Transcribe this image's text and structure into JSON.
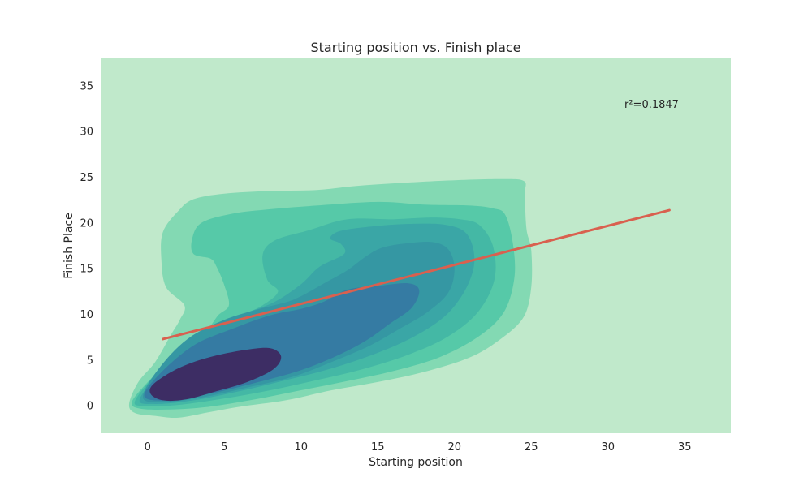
{
  "chart_data": {
    "type": "kde_contour",
    "title": "Starting position vs. Finish place",
    "xlabel": "Starting position",
    "ylabel": "Finish Place",
    "xlim": [
      -3,
      38
    ],
    "ylim": [
      -3,
      38
    ],
    "xticks": [
      0,
      5,
      10,
      15,
      20,
      25,
      30,
      35
    ],
    "yticks": [
      0,
      5,
      10,
      15,
      20,
      25,
      30,
      35
    ],
    "x_tick_labels": [
      "0",
      "5",
      "10",
      "15",
      "20",
      "25",
      "30",
      "35"
    ],
    "y_tick_labels": [
      "0",
      "5",
      "10",
      "15",
      "20",
      "25",
      "30",
      "35"
    ],
    "grid": false,
    "background_color": "#c0e9cb",
    "regression_line": {
      "x": [
        1,
        34
      ],
      "y": [
        7.3,
        21.4
      ],
      "color": "#d9604f"
    },
    "annotation": {
      "text": "r²=0.1847",
      "x": 31,
      "y": 33
    },
    "density_levels": [
      {
        "level": 1,
        "color": "#83d9b3",
        "outline": [
          [
            -1.2,
            0.2
          ],
          [
            -0.8,
            -0.8
          ],
          [
            0.5,
            -1.1
          ],
          [
            2,
            -1.3
          ],
          [
            4,
            -0.7
          ],
          [
            6,
            -0.1
          ],
          [
            9,
            0.6
          ],
          [
            12,
            1.7
          ],
          [
            15,
            2.6
          ],
          [
            18,
            3.7
          ],
          [
            21,
            5.3
          ],
          [
            23,
            7.3
          ],
          [
            24.5,
            9.7
          ],
          [
            25,
            13
          ],
          [
            25,
            17
          ],
          [
            24.7,
            19.2
          ],
          [
            24.6,
            22
          ],
          [
            24.6,
            23.5
          ],
          [
            24.5,
            24.6
          ],
          [
            23,
            24.8
          ],
          [
            19,
            24.6
          ],
          [
            14,
            24.1
          ],
          [
            11,
            23.6
          ],
          [
            8,
            23.5
          ],
          [
            5,
            23.2
          ],
          [
            3,
            22.6
          ],
          [
            2,
            21.3
          ],
          [
            1,
            19
          ],
          [
            0.9,
            16
          ],
          [
            1.2,
            13
          ],
          [
            2.4,
            11
          ],
          [
            2.1,
            9.4
          ],
          [
            1.5,
            7.7
          ],
          [
            0.5,
            4.8
          ],
          [
            -0.6,
            2.6
          ]
        ]
      },
      {
        "level": 2,
        "color": "#56c9a8",
        "outline": [
          [
            -1,
            0.5
          ],
          [
            -0.5,
            -0.3
          ],
          [
            1.5,
            -0.4
          ],
          [
            4,
            -0.1
          ],
          [
            7,
            0.7
          ],
          [
            10,
            1.7
          ],
          [
            13,
            2.7
          ],
          [
            16,
            3.8
          ],
          [
            19,
            5.3
          ],
          [
            21.5,
            7.5
          ],
          [
            23.2,
            10.2
          ],
          [
            23.9,
            14
          ],
          [
            23.8,
            17.8
          ],
          [
            23.3,
            20.9
          ],
          [
            22.5,
            21.6
          ],
          [
            21,
            21.9
          ],
          [
            18,
            22
          ],
          [
            15,
            22.3
          ],
          [
            11,
            21.9
          ],
          [
            8,
            21.5
          ],
          [
            5.5,
            21
          ],
          [
            3.5,
            20
          ],
          [
            2.9,
            18.2
          ],
          [
            3,
            16.6
          ],
          [
            4.1,
            16.1
          ],
          [
            4.5,
            15.2
          ],
          [
            5,
            13.2
          ],
          [
            5.3,
            11
          ],
          [
            4.6,
            9.9
          ],
          [
            3.8,
            8.2
          ],
          [
            2,
            5.9
          ],
          [
            0.3,
            3.1
          ]
        ]
      },
      {
        "level": 3,
        "color": "#44b8a5",
        "outline": [
          [
            -0.8,
            0.6
          ],
          [
            0,
            0
          ],
          [
            2,
            0.1
          ],
          [
            5,
            0.8
          ],
          [
            8,
            1.7
          ],
          [
            11,
            2.8
          ],
          [
            14,
            4
          ],
          [
            17,
            5.6
          ],
          [
            19.5,
            7.5
          ],
          [
            21.5,
            10.2
          ],
          [
            22.6,
            13.8
          ],
          [
            22.5,
            17.5
          ],
          [
            21.6,
            19.8
          ],
          [
            20.4,
            20.4
          ],
          [
            18.5,
            20.6
          ],
          [
            16,
            20.4
          ],
          [
            13,
            20.4
          ],
          [
            10.5,
            19.2
          ],
          [
            8.3,
            18.1
          ],
          [
            7.5,
            16.5
          ],
          [
            7.8,
            13.8
          ],
          [
            8.5,
            12.5
          ],
          [
            7.5,
            11
          ],
          [
            6,
            9.8
          ],
          [
            3.8,
            8.2
          ],
          [
            1.3,
            4.8
          ]
        ]
      },
      {
        "level": 4,
        "color": "#3aa6a6",
        "outline": [
          [
            -0.5,
            0.8
          ],
          [
            0.5,
            0.2
          ],
          [
            3,
            0.6
          ],
          [
            6,
            1.6
          ],
          [
            9,
            2.8
          ],
          [
            12,
            4.1
          ],
          [
            15,
            5.8
          ],
          [
            17.5,
            7.7
          ],
          [
            19.5,
            10
          ],
          [
            20.8,
            13
          ],
          [
            21.3,
            16
          ],
          [
            20.8,
            18.8
          ],
          [
            19.4,
            19.8
          ],
          [
            17,
            19.9
          ],
          [
            14.5,
            19.6
          ],
          [
            12.5,
            19.1
          ],
          [
            11.9,
            18.3
          ],
          [
            12.6,
            17.7
          ],
          [
            12.8,
            16.6
          ],
          [
            11.2,
            15.2
          ],
          [
            10,
            13.3
          ],
          [
            8.2,
            11.3
          ],
          [
            6,
            9.9
          ],
          [
            3.8,
            8.2
          ],
          [
            1.5,
            4.8
          ]
        ]
      },
      {
        "level": 5,
        "color": "#3597a3",
        "outline": [
          [
            -0.3,
            0.9
          ],
          [
            1,
            0.4
          ],
          [
            3.5,
            0.9
          ],
          [
            6.5,
            2
          ],
          [
            9.5,
            3.2
          ],
          [
            12,
            4.8
          ],
          [
            14.5,
            6.6
          ],
          [
            16.5,
            8.5
          ],
          [
            18.2,
            10.2
          ],
          [
            19.6,
            12.4
          ],
          [
            20,
            15
          ],
          [
            19.6,
            17.1
          ],
          [
            18.6,
            17.9
          ],
          [
            17,
            17.8
          ],
          [
            15.3,
            17.3
          ],
          [
            14.2,
            16.3
          ],
          [
            13,
            14.8
          ],
          [
            11.5,
            13.4
          ],
          [
            9.5,
            11.6
          ],
          [
            7.3,
            10.6
          ],
          [
            5,
            9.4
          ],
          [
            2.6,
            7.3
          ],
          [
            0.7,
            4
          ]
        ]
      },
      {
        "level": 6,
        "color": "#357ba3",
        "outline": [
          [
            -0.2,
            1
          ],
          [
            1.5,
            0.6
          ],
          [
            4,
            1.3
          ],
          [
            7,
            2.5
          ],
          [
            10,
            3.9
          ],
          [
            12.5,
            5.6
          ],
          [
            14.3,
            7.2
          ],
          [
            15.8,
            9
          ],
          [
            17.2,
            10.7
          ],
          [
            17.7,
            12.6
          ],
          [
            17,
            13.4
          ],
          [
            15,
            13.1
          ],
          [
            13,
            12.7
          ],
          [
            11.5,
            11.4
          ],
          [
            10,
            10.6
          ],
          [
            8,
            9.9
          ],
          [
            5.5,
            8.4
          ],
          [
            3,
            6.6
          ],
          [
            0.8,
            3.5
          ]
        ]
      },
      {
        "level": 7,
        "color": "#3d2d64",
        "outline": [
          [
            0.2,
            1.3
          ],
          [
            1,
            0.6
          ],
          [
            2.5,
            0.7
          ],
          [
            4.5,
            1.6
          ],
          [
            6.5,
            2.6
          ],
          [
            8.2,
            4
          ],
          [
            8.7,
            5.4
          ],
          [
            8,
            6.3
          ],
          [
            6.3,
            6.1
          ],
          [
            4,
            5.3
          ],
          [
            2,
            4.1
          ],
          [
            0.4,
            2.4
          ]
        ]
      }
    ]
  }
}
